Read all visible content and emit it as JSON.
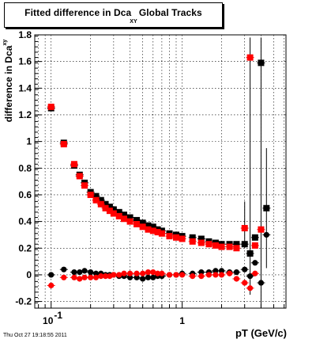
{
  "title": {
    "main_prefix": "Fitted difference in Dca",
    "main_sub": "XY",
    "main_suffix": "Global Tracks"
  },
  "ylabel": {
    "text": "difference in Dca",
    "sup": "xy"
  },
  "xlabel": "pT (GeV/c)",
  "timestamp": "Thu Oct 27 19:18:55 2011",
  "colors": {
    "series_a": "#000000",
    "series_b": "#ff0000",
    "grid": "#000000"
  },
  "chart_data": {
    "type": "scatter",
    "x_scale": "log",
    "xlim": [
      0.075,
      6.2
    ],
    "ylim": [
      -0.25,
      1.8
    ],
    "grid": true,
    "x_ticks": [
      {
        "value": 0.1,
        "label": "10",
        "exp": "-1"
      },
      {
        "value": 1,
        "label": "1",
        "exp": ""
      }
    ],
    "y_ticks": [
      {
        "value": -0.2,
        "label": "-0.2"
      },
      {
        "value": 0,
        "label": "0"
      },
      {
        "value": 0.2,
        "label": "0.2"
      },
      {
        "value": 0.4,
        "label": "0.4"
      },
      {
        "value": 0.6,
        "label": "0.6"
      },
      {
        "value": 0.8,
        "label": "0.8"
      },
      {
        "value": 1,
        "label": "1"
      },
      {
        "value": 1.2,
        "label": "1.2"
      },
      {
        "value": 1.4,
        "label": "1.4"
      },
      {
        "value": 1.6,
        "label": "1.6"
      },
      {
        "value": 1.8,
        "label": "1.8"
      }
    ],
    "series": [
      {
        "color": "#000000",
        "marker": "square",
        "points": [
          [
            0.1,
            1.25
          ],
          [
            0.125,
            0.99
          ],
          [
            0.15,
            0.82
          ],
          [
            0.165,
            0.75
          ],
          [
            0.18,
            0.69
          ],
          [
            0.2,
            0.62
          ],
          [
            0.22,
            0.59
          ],
          [
            0.24,
            0.56
          ],
          [
            0.26,
            0.53
          ],
          [
            0.28,
            0.51
          ],
          [
            0.3,
            0.49
          ],
          [
            0.33,
            0.47
          ],
          [
            0.36,
            0.45
          ],
          [
            0.4,
            0.43
          ],
          [
            0.45,
            0.41
          ],
          [
            0.5,
            0.39
          ],
          [
            0.55,
            0.37
          ],
          [
            0.6,
            0.36
          ],
          [
            0.65,
            0.34
          ],
          [
            0.7,
            0.33
          ],
          [
            0.8,
            0.31
          ],
          [
            0.9,
            0.3
          ],
          [
            1.0,
            0.29
          ],
          [
            1.2,
            0.28
          ],
          [
            1.4,
            0.27
          ],
          [
            1.6,
            0.25
          ],
          [
            1.8,
            0.24
          ],
          [
            2.0,
            0.23
          ],
          [
            2.3,
            0.23
          ],
          [
            2.6,
            0.23
          ],
          [
            3.0,
            0.23
          ],
          [
            3.3,
            0.16
          ],
          [
            3.6,
            0.28
          ],
          [
            4.0,
            1.59
          ],
          [
            4.4,
            0.5
          ]
        ]
      },
      {
        "color": "#ff0000",
        "marker": "square",
        "points": [
          [
            0.1,
            1.26
          ],
          [
            0.125,
            0.98
          ],
          [
            0.15,
            0.83
          ],
          [
            0.165,
            0.74
          ],
          [
            0.18,
            0.67
          ],
          [
            0.2,
            0.6
          ],
          [
            0.22,
            0.56
          ],
          [
            0.24,
            0.53
          ],
          [
            0.26,
            0.5
          ],
          [
            0.28,
            0.48
          ],
          [
            0.3,
            0.46
          ],
          [
            0.33,
            0.44
          ],
          [
            0.36,
            0.42
          ],
          [
            0.4,
            0.4
          ],
          [
            0.45,
            0.38
          ],
          [
            0.5,
            0.36
          ],
          [
            0.55,
            0.34
          ],
          [
            0.6,
            0.33
          ],
          [
            0.65,
            0.32
          ],
          [
            0.7,
            0.31
          ],
          [
            0.8,
            0.29
          ],
          [
            0.9,
            0.28
          ],
          [
            1.0,
            0.27
          ],
          [
            1.2,
            0.25
          ],
          [
            1.4,
            0.24
          ],
          [
            1.6,
            0.23
          ],
          [
            1.8,
            0.22
          ],
          [
            2.0,
            0.21
          ],
          [
            2.3,
            0.21
          ],
          [
            2.6,
            0.2
          ],
          [
            3.0,
            0.35
          ],
          [
            3.3,
            1.63
          ],
          [
            3.6,
            0.22
          ],
          [
            4.0,
            0.34
          ]
        ]
      },
      {
        "color": "#000000",
        "marker": "circle",
        "points": [
          [
            0.1,
            0.0
          ],
          [
            0.125,
            0.04
          ],
          [
            0.15,
            0.02
          ],
          [
            0.165,
            0.02
          ],
          [
            0.18,
            0.03
          ],
          [
            0.2,
            0.02
          ],
          [
            0.22,
            0.01
          ],
          [
            0.24,
            0.01
          ],
          [
            0.26,
            0.0
          ],
          [
            0.28,
            0.0
          ],
          [
            0.3,
            0.0
          ],
          [
            0.33,
            -0.01
          ],
          [
            0.36,
            -0.01
          ],
          [
            0.4,
            -0.02
          ],
          [
            0.45,
            -0.02
          ],
          [
            0.5,
            -0.03
          ],
          [
            0.55,
            -0.02
          ],
          [
            0.6,
            -0.02
          ],
          [
            0.65,
            -0.01
          ],
          [
            0.7,
            -0.01
          ],
          [
            0.8,
            0.0
          ],
          [
            0.9,
            0.0
          ],
          [
            1.0,
            0.01
          ],
          [
            1.2,
            0.01
          ],
          [
            1.4,
            0.02
          ],
          [
            1.6,
            0.02
          ],
          [
            1.8,
            0.03
          ],
          [
            2.0,
            0.03
          ],
          [
            2.3,
            0.02
          ],
          [
            2.6,
            0.02
          ],
          [
            3.0,
            0.04
          ],
          [
            3.3,
            -0.01
          ],
          [
            3.6,
            0.09
          ],
          [
            4.0,
            -0.06
          ],
          [
            4.4,
            0.3
          ]
        ]
      },
      {
        "color": "#ff0000",
        "marker": "circle",
        "points": [
          [
            0.1,
            -0.08
          ],
          [
            0.125,
            -0.02
          ],
          [
            0.15,
            -0.02
          ],
          [
            0.165,
            -0.03
          ],
          [
            0.18,
            -0.02
          ],
          [
            0.2,
            -0.02
          ],
          [
            0.22,
            -0.02
          ],
          [
            0.24,
            -0.01
          ],
          [
            0.26,
            -0.01
          ],
          [
            0.28,
            -0.01
          ],
          [
            0.3,
            0.0
          ],
          [
            0.33,
            0.0
          ],
          [
            0.36,
            0.01
          ],
          [
            0.4,
            0.01
          ],
          [
            0.45,
            0.01
          ],
          [
            0.5,
            0.01
          ],
          [
            0.55,
            0.02
          ],
          [
            0.6,
            0.02
          ],
          [
            0.65,
            0.01
          ],
          [
            0.7,
            0.01
          ],
          [
            0.8,
            0.0
          ],
          [
            0.9,
            0.0
          ],
          [
            1.0,
            0.0
          ],
          [
            1.2,
            -0.01
          ],
          [
            1.4,
            -0.01
          ],
          [
            1.6,
            0.0
          ],
          [
            1.8,
            0.0
          ],
          [
            2.0,
            0.0
          ],
          [
            2.3,
            0.01
          ],
          [
            2.6,
            -0.03
          ],
          [
            3.0,
            -0.06
          ],
          [
            3.3,
            -0.1
          ],
          [
            3.6,
            0.01
          ]
        ]
      }
    ],
    "error_bars": [
      {
        "x": 3.3,
        "y_low": -0.15,
        "y_high": 1.78
      },
      {
        "x": 4.0,
        "y_low": -0.25,
        "y_high": 1.78
      },
      {
        "x": 4.4,
        "y_low": 0.05,
        "y_high": 0.95
      },
      {
        "x": 3.0,
        "y_low": 0.2,
        "y_high": 0.55
      }
    ]
  }
}
